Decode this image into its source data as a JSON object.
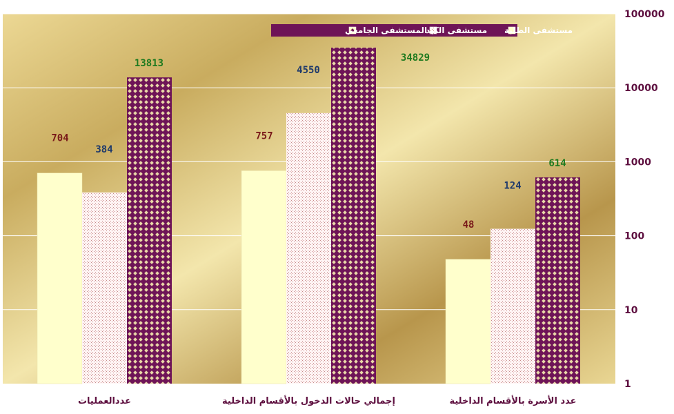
{
  "chart_data": {
    "type": "bar",
    "yscale": "log",
    "ylim": [
      1,
      100000
    ],
    "y_ticks": [
      "1",
      "10",
      "100",
      "1000",
      "10000",
      "100000"
    ],
    "categories": [
      "عددالعمليات",
      "إجمالي حالات الدخول بالأقسام الداخلية",
      "عدد الأسرة بالأقسام الداخلية"
    ],
    "series": [
      {
        "name": "مستشفى الطلبة",
        "values": [
          704,
          757,
          48
        ],
        "label_color": "#7a1a1a"
      },
      {
        "name": "مستشفى الكبد",
        "values": [
          384,
          4550,
          124
        ],
        "label_color": "#1f3a6b"
      },
      {
        "name": "المستشفى الجامعي",
        "values": [
          13813,
          34829,
          614
        ],
        "label_color": "#1f7a1f"
      }
    ],
    "legend_position": "top-center",
    "grid": true,
    "colors": {
      "series_fill": [
        "#ffffcc",
        "#fce8e8",
        "#6e1457"
      ],
      "grid": "#ffffff",
      "legend_bg": "#6e1457",
      "axis_text": "#5e1040"
    }
  }
}
